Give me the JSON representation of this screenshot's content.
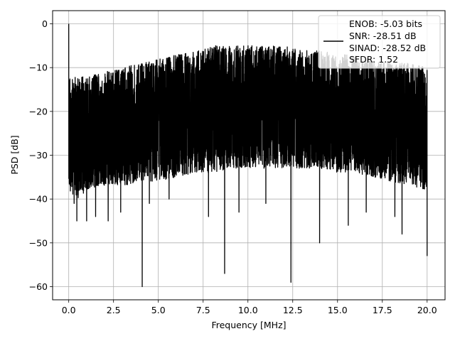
{
  "chart_data": {
    "type": "line",
    "title": "",
    "xlabel": "Frequency [MHz]",
    "ylabel": "PSD [dB]",
    "xlim": [
      -0.9,
      21.0
    ],
    "ylim": [
      -63,
      3
    ],
    "xticks": [
      0.0,
      2.5,
      5.0,
      7.5,
      10.0,
      12.5,
      15.0,
      17.5,
      20.0
    ],
    "xtick_labels": [
      "0.0",
      "2.5",
      "5.0",
      "7.5",
      "10.0",
      "12.5",
      "15.0",
      "17.5",
      "20.0"
    ],
    "yticks": [
      0,
      -10,
      -20,
      -30,
      -40,
      -50,
      -60
    ],
    "ytick_labels": [
      "0",
      "−10",
      "−20",
      "−30",
      "−40",
      "−50",
      "−60"
    ],
    "grid": true,
    "legend_position": "top-right",
    "color": "#000000",
    "x_range": [
      0.0,
      20.0
    ],
    "series": [
      {
        "name": "ENOB: -5.03 bits\nSNR: -28.51 dB\nSINAD: -28.52 dB\nSFDR: 1.52",
        "legend_lines": [
          "ENOB: -5.03 bits",
          "SNR: -28.51 dB",
          "SINAD: -28.52 dB",
          "SFDR: 1.52"
        ],
        "description": "noise-like power spectral density, dense black trace",
        "peak": {
          "x": 0.0,
          "y": 0
        },
        "envelope_x": [
          0.0,
          0.5,
          1.0,
          2.0,
          3.0,
          4.0,
          5.0,
          6.0,
          7.0,
          8.0,
          9.0,
          10.0,
          11.0,
          12.0,
          13.0,
          14.0,
          15.0,
          16.0,
          17.0,
          18.0,
          19.0,
          20.0
        ],
        "envelope_top": [
          -12,
          -12,
          -12,
          -11,
          -10,
          -9,
          -8,
          -7,
          -6,
          -5,
          -5,
          -5,
          -5,
          -5,
          -6,
          -6,
          -7,
          -7,
          -8,
          -9,
          -9,
          -10
        ],
        "envelope_bottom": [
          -38,
          -40,
          -38,
          -37,
          -37,
          -36,
          -36,
          -35,
          -34,
          -34,
          -33,
          -33,
          -33,
          -33,
          -33,
          -33,
          -34,
          -34,
          -35,
          -36,
          -37,
          -38
        ],
        "deep_dips": [
          {
            "x": 0.3,
            "y": -41
          },
          {
            "x": 0.45,
            "y": -45
          },
          {
            "x": 1.0,
            "y": -45
          },
          {
            "x": 1.5,
            "y": -44
          },
          {
            "x": 2.2,
            "y": -45
          },
          {
            "x": 2.9,
            "y": -43
          },
          {
            "x": 4.1,
            "y": -60
          },
          {
            "x": 4.5,
            "y": -41
          },
          {
            "x": 5.6,
            "y": -40
          },
          {
            "x": 7.8,
            "y": -44
          },
          {
            "x": 8.7,
            "y": -57
          },
          {
            "x": 9.5,
            "y": -43
          },
          {
            "x": 11.0,
            "y": -41
          },
          {
            "x": 12.4,
            "y": -59
          },
          {
            "x": 14.0,
            "y": -50
          },
          {
            "x": 15.6,
            "y": -46
          },
          {
            "x": 16.6,
            "y": -43
          },
          {
            "x": 18.2,
            "y": -44
          },
          {
            "x": 18.6,
            "y": -48
          },
          {
            "x": 20.0,
            "y": -53
          }
        ]
      }
    ]
  }
}
